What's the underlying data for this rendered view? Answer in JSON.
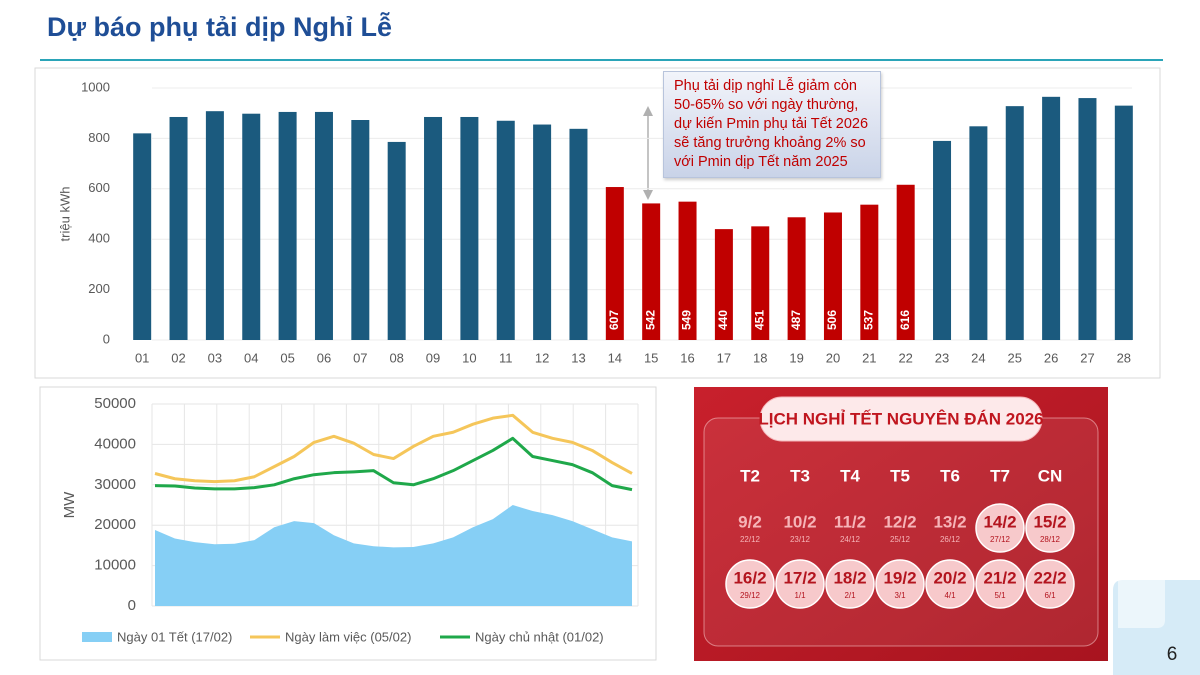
{
  "title": "Dự báo phụ tải dịp Nghỉ Lễ",
  "page_number": "6",
  "chart_data": [
    {
      "type": "bar",
      "y_label": "triệu kWh",
      "annotation": "Phụ tải dịp nghỉ Lễ giảm còn 50-65% so với ngày thường, dự kiến Pmin phụ tải Tết 2026 sẽ tăng trưởng khoảng 2% so với Pmin dịp Tết năm 2025",
      "categories": [
        "01",
        "02",
        "03",
        "04",
        "05",
        "06",
        "07",
        "08",
        "09",
        "10",
        "11",
        "12",
        "13",
        "14",
        "15",
        "16",
        "17",
        "18",
        "19",
        "20",
        "21",
        "22",
        "23",
        "24",
        "25",
        "26",
        "27",
        "28"
      ],
      "series": [
        {
          "color": "#1b5a7e",
          "show_values": false,
          "values": [
            820,
            885,
            908,
            898,
            905,
            905,
            873,
            786,
            885,
            885,
            870,
            855,
            838,
            null,
            null,
            null,
            null,
            null,
            null,
            null,
            null,
            null,
            790,
            848,
            928,
            965,
            960,
            930
          ]
        },
        {
          "color": "#c00000",
          "show_values": true,
          "values": [
            null,
            null,
            null,
            null,
            null,
            null,
            null,
            null,
            null,
            null,
            null,
            null,
            null,
            607,
            542,
            549,
            440,
            451,
            487,
            506,
            537,
            616,
            null,
            null,
            null,
            null,
            null,
            null
          ]
        }
      ],
      "ylim": [
        0,
        1000
      ],
      "yticks": [
        0,
        200,
        400,
        600,
        800,
        1000
      ],
      "grid": true
    },
    {
      "type": "line",
      "y_label": "MW",
      "series": [
        {
          "name": "Ngày 01 Tết (17/02)",
          "type": "area",
          "color": "#86cff5",
          "values": [
            18800,
            16700,
            15800,
            15300,
            15400,
            16300,
            19500,
            21000,
            20500,
            17500,
            15500,
            14800,
            14500,
            14600,
            15500,
            17000,
            19500,
            21500,
            25000,
            23500,
            22500,
            21000,
            19000,
            17000,
            16000
          ]
        },
        {
          "name": "Ngày làm việc (05/02)",
          "type": "line",
          "color": "#f5c65a",
          "values": [
            32800,
            31500,
            31000,
            30800,
            31000,
            32000,
            34500,
            37000,
            40500,
            42000,
            40300,
            37500,
            36500,
            39500,
            42000,
            43000,
            45000,
            46500,
            47200,
            43000,
            41500,
            40500,
            38500,
            35500,
            32800
          ]
        },
        {
          "name": "Ngày chủ nhật (01/02)",
          "type": "line",
          "color": "#1fa84a",
          "values": [
            29800,
            29700,
            29200,
            29000,
            29000,
            29300,
            30000,
            31500,
            32500,
            33000,
            33200,
            33500,
            30500,
            30000,
            31500,
            33500,
            36000,
            38500,
            41500,
            37000,
            36000,
            35000,
            33000,
            29800,
            28800
          ]
        }
      ],
      "ylim": [
        0,
        50000
      ],
      "yticks": [
        0,
        10000,
        20000,
        30000,
        40000,
        50000
      ],
      "grid": true,
      "legend": "bottom"
    }
  ],
  "calendar": {
    "title": "LỊCH NGHỈ TẾT NGUYÊN ĐÁN 2026",
    "weekdays": [
      "T2",
      "T3",
      "T4",
      "T5",
      "T6",
      "T7",
      "CN"
    ],
    "rows": [
      [
        {
          "date": "9/2",
          "lunar": "22/12",
          "holiday": false
        },
        {
          "date": "10/2",
          "lunar": "23/12",
          "holiday": false
        },
        {
          "date": "11/2",
          "lunar": "24/12",
          "holiday": false
        },
        {
          "date": "12/2",
          "lunar": "25/12",
          "holiday": false
        },
        {
          "date": "13/2",
          "lunar": "26/12",
          "holiday": false
        },
        {
          "date": "14/2",
          "lunar": "27/12",
          "holiday": true
        },
        {
          "date": "15/2",
          "lunar": "28/12",
          "holiday": true
        }
      ],
      [
        {
          "date": "16/2",
          "lunar": "29/12",
          "holiday": true
        },
        {
          "date": "17/2",
          "lunar": "1/1",
          "holiday": true
        },
        {
          "date": "18/2",
          "lunar": "2/1",
          "holiday": true
        },
        {
          "date": "19/2",
          "lunar": "3/1",
          "holiday": true
        },
        {
          "date": "20/2",
          "lunar": "4/1",
          "holiday": true
        },
        {
          "date": "21/2",
          "lunar": "5/1",
          "holiday": true
        },
        {
          "date": "22/2",
          "lunar": "6/1",
          "holiday": true
        }
      ]
    ]
  }
}
